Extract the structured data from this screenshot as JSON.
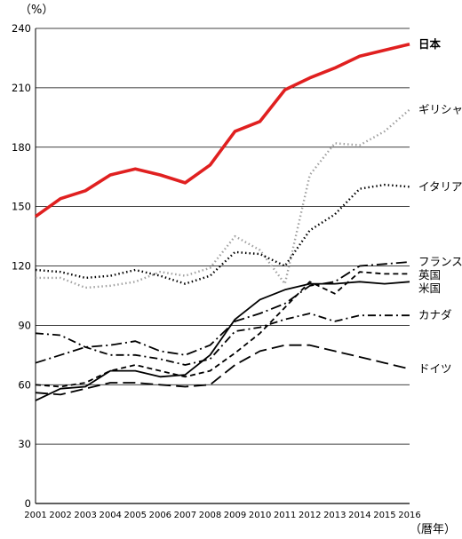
{
  "chart_data": {
    "type": "line",
    "title": "",
    "xlabel": "（暦年）",
    "ylabel": "（%）",
    "ylim": [
      0,
      240
    ],
    "yticks": [
      0,
      30,
      60,
      90,
      120,
      150,
      180,
      210,
      240
    ],
    "grid": true,
    "categories": [
      "2001",
      "2002",
      "2003",
      "2004",
      "2005",
      "2006",
      "2007",
      "2008",
      "2009",
      "2010",
      "2011",
      "2012",
      "2013",
      "2014",
      "2015",
      "2016"
    ],
    "series": [
      {
        "name": "日本",
        "color": "#e02020",
        "style": "solid-thick",
        "values": [
          145,
          154,
          158,
          166,
          169,
          166,
          162,
          171,
          188,
          193,
          209,
          215,
          220,
          226,
          229,
          232
        ]
      },
      {
        "name": "ギリシャ",
        "color": "#a0a0a0",
        "style": "dotted",
        "values": [
          114,
          114,
          109,
          110,
          112,
          117,
          115,
          119,
          135,
          128,
          111,
          166,
          182,
          181,
          188,
          199
        ]
      },
      {
        "name": "イタリア",
        "color": "#000000",
        "style": "dotted",
        "values": [
          118,
          117,
          114,
          115,
          118,
          115,
          111,
          115,
          127,
          126,
          120,
          138,
          146,
          159,
          161,
          160
        ]
      },
      {
        "name": "フランス",
        "color": "#000000",
        "style": "longdash-dot",
        "values": [
          71,
          75,
          79,
          80,
          82,
          77,
          75,
          80,
          92,
          96,
          101,
          110,
          112,
          120,
          121,
          122
        ]
      },
      {
        "name": "英国",
        "color": "#000000",
        "style": "dashed",
        "values": [
          60,
          59,
          61,
          67,
          70,
          67,
          64,
          67,
          76,
          86,
          99,
          112,
          106,
          117,
          116,
          116
        ]
      },
      {
        "name": "米国",
        "color": "#000000",
        "style": "solid",
        "values": [
          52,
          58,
          59,
          67,
          67,
          64,
          65,
          75,
          93,
          103,
          108,
          111,
          111,
          112,
          111,
          112
        ]
      },
      {
        "name": "カナダ",
        "color": "#000000",
        "style": "dashdot",
        "values": [
          86,
          85,
          79,
          75,
          75,
          73,
          70,
          73,
          87,
          89,
          93,
          96,
          92,
          95,
          95,
          95
        ]
      },
      {
        "name": "ドイツ",
        "color": "#000000",
        "style": "longdash",
        "values": [
          56,
          55,
          58,
          61,
          61,
          60,
          59,
          60,
          70,
          77,
          80,
          80,
          77,
          74,
          71,
          68
        ]
      }
    ]
  }
}
